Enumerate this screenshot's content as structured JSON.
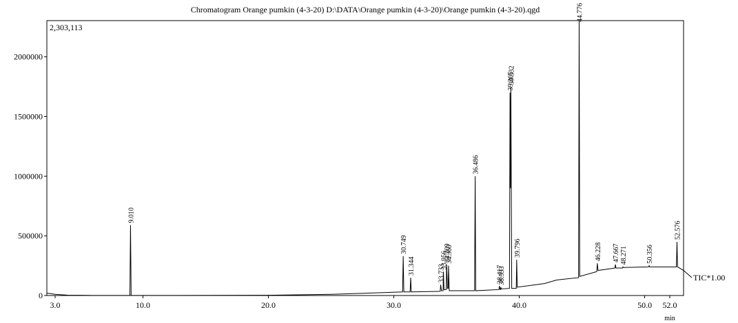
{
  "chart_data": {
    "type": "line",
    "title": "Chromatogram Orange pumkin (4-3-20) D:\\DATA\\Orange pumkin (4-3-20)\\Orange pumkin (4-3-20).qgd",
    "max_label": "2,303,113",
    "trace_label": "TIC*1.00",
    "x_label": "min",
    "color": "#000000",
    "x": [
      2.34,
      3,
      4,
      6,
      8.9,
      8.96,
      9.01,
      9.06,
      12,
      20,
      25,
      28,
      30.7,
      30.749,
      30.8,
      31.3,
      31.344,
      31.39,
      33.7,
      33.733,
      33.8,
      33.93,
      33.956,
      34.0,
      34.18,
      34.209,
      34.28,
      34.34,
      34.36,
      34.42,
      36.44,
      36.486,
      36.53,
      38.38,
      38.417,
      38.47,
      38.5,
      38.533,
      38.57,
      39.22,
      39.265,
      39.3,
      39.332,
      39.4,
      39.76,
      39.796,
      39.84,
      42,
      43,
      44.73,
      44.776,
      44.82,
      46.18,
      46.228,
      46.28,
      47.62,
      47.667,
      47.71,
      48.23,
      48.271,
      48.31,
      50.3,
      50.356,
      50.4,
      52.53,
      52.576,
      52.62,
      53.1
    ],
    "values": [
      20000,
      10000,
      3000,
      1000,
      1000,
      1000,
      590000,
      1000,
      1000,
      2000,
      10000,
      20000,
      30000,
      330000,
      30000,
      30000,
      150000,
      30000,
      35000,
      90000,
      40000,
      40000,
      200000,
      50000,
      50000,
      260000,
      60000,
      60000,
      250000,
      40000,
      40000,
      1000000,
      40000,
      50000,
      80000,
      50000,
      50000,
      70000,
      55000,
      60000,
      1700000,
      900000,
      1750000,
      60000,
      60000,
      300000,
      70000,
      100000,
      130000,
      150000,
      2300000,
      160000,
      200000,
      270000,
      210000,
      230000,
      260000,
      230000,
      230000,
      240000,
      235000,
      240000,
      250000,
      240000,
      240000,
      450000,
      240000,
      210000
    ],
    "peaks": [
      {
        "value": 9.01,
        "label": "9.010"
      },
      {
        "value": 30.749,
        "label": "30.749"
      },
      {
        "value": 31.344,
        "label": "31.344"
      },
      {
        "value": 33.733,
        "label": "33.733"
      },
      {
        "value": 33.956,
        "label": "33.956"
      },
      {
        "value": 34.209,
        "label": "34.209"
      },
      {
        "value": 34.36,
        "label": "34.360"
      },
      {
        "value": 36.486,
        "label": "36.486"
      },
      {
        "value": 38.417,
        "label": "38.417"
      },
      {
        "value": 38.533,
        "label": "38.533"
      },
      {
        "value": 39.265,
        "label": "39.265"
      },
      {
        "value": 39.332,
        "label": "39.332"
      },
      {
        "value": 39.796,
        "label": "39.796"
      },
      {
        "value": 44.776,
        "label": "44.776"
      },
      {
        "value": 46.228,
        "label": "46.228"
      },
      {
        "value": 47.667,
        "label": "47.667"
      },
      {
        "value": 48.271,
        "label": "48.271"
      },
      {
        "value": 50.356,
        "label": "50.356"
      },
      {
        "value": 52.576,
        "label": "52.576"
      }
    ],
    "xlim": [
      2.34,
      53.1
    ],
    "ylim": [
      0,
      2303113
    ],
    "xticks": [
      {
        "value": 3,
        "label": "3.0"
      },
      {
        "value": 10,
        "label": "10.0"
      },
      {
        "value": 20,
        "label": "20.0"
      },
      {
        "value": 30,
        "label": "30.0"
      },
      {
        "value": 40,
        "label": "40.0"
      },
      {
        "value": 50,
        "label": "50.0"
      },
      {
        "value": 52,
        "label": "52.0"
      }
    ],
    "yticks": [
      0,
      500000,
      1000000,
      1500000,
      2000000
    ],
    "grid": false
  }
}
